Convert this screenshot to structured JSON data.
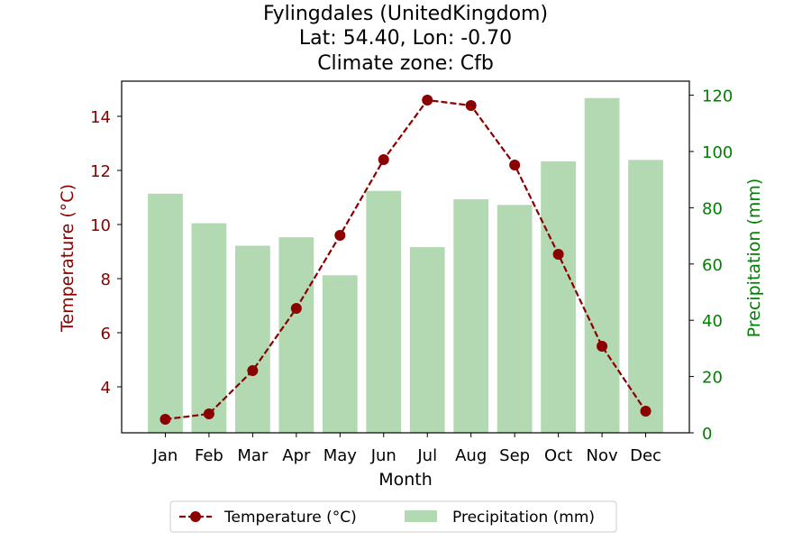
{
  "chart_data": {
    "type": "bar",
    "title_lines": [
      "Fylingdales (UnitedKingdom)",
      "Lat: 54.40, Lon: -0.70",
      "Climate zone: Cfb"
    ],
    "xlabel": "Month",
    "ylabel_left": "Temperature (°C)",
    "ylabel_right": "Precipitation (mm)",
    "categories": [
      "Jan",
      "Feb",
      "Mar",
      "Apr",
      "May",
      "Jun",
      "Jul",
      "Aug",
      "Sep",
      "Oct",
      "Nov",
      "Dec"
    ],
    "temperature": {
      "name": "Temperature (°C)",
      "color": "#8b0000",
      "values": [
        2.8,
        3.0,
        4.6,
        6.9,
        9.6,
        12.4,
        14.6,
        14.4,
        12.2,
        8.9,
        5.5,
        3.1
      ]
    },
    "precipitation": {
      "name": "Precipitation (mm)",
      "color": "#b2d9b2",
      "values": [
        85,
        74.5,
        66.5,
        69.5,
        56,
        86,
        66,
        83,
        81,
        96.5,
        119,
        97
      ]
    },
    "ylim_left": [
      2.3,
      15.3
    ],
    "yticks_left": [
      4,
      6,
      8,
      10,
      12,
      14
    ],
    "ylim_right": [
      0,
      125
    ],
    "yticks_right": [
      0,
      20,
      40,
      60,
      80,
      100,
      120
    ],
    "left_axis_color": "#8b0000",
    "right_axis_color": "#008000",
    "grid": false,
    "legend_position": "bottom-center"
  }
}
